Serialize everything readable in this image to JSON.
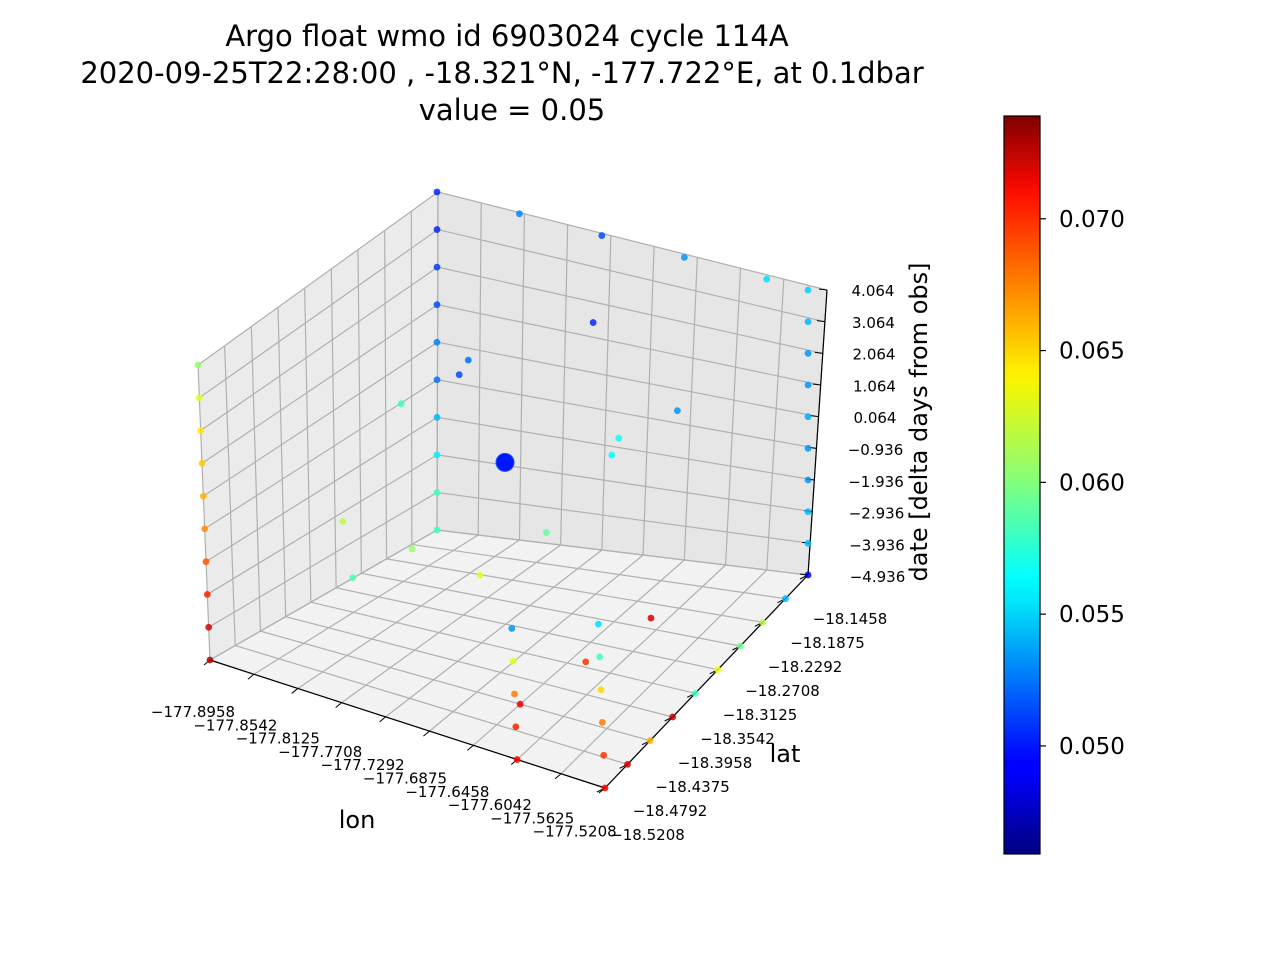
{
  "chart_data": {
    "type": "scatter",
    "projection": "3d",
    "title_lines": [
      "Argo float wmo id 6903024 cycle 114A",
      "2020-09-25T22:28:00 , -18.321°N, -177.722°E, at 0.1dbar",
      "value = 0.05"
    ],
    "xlabel": "lon",
    "ylabel": "lat",
    "zlabel": "date [delta days from obs]",
    "x_ticks": [
      "−177.8958",
      "−177.8542",
      "−177.8125",
      "−177.7708",
      "−177.7292",
      "−177.6875",
      "−177.6458",
      "−177.6042",
      "−177.5625",
      "−177.5208"
    ],
    "y_ticks": [
      "−18.1458",
      "−18.1875",
      "−18.2292",
      "−18.2708",
      "−18.3125",
      "−18.3542",
      "−18.3958",
      "−18.4375",
      "−18.4792",
      "−18.5208"
    ],
    "z_ticks": [
      "4.064",
      "3.064",
      "2.064",
      "1.064",
      "0.064",
      "−0.936",
      "−1.936",
      "−2.936",
      "−3.936",
      "−4.936"
    ],
    "xlim": [
      -177.8958,
      -177.5208
    ],
    "ylim": [
      -18.5208,
      -18.1458
    ],
    "zlim": [
      -4.936,
      4.064
    ],
    "colormap": "jet",
    "colorbar": {
      "range": [
        0.0459,
        0.0739
      ],
      "ticks": [
        "0.050",
        "0.055",
        "0.060",
        "0.065",
        "0.070"
      ]
    },
    "observation": {
      "lon": -177.722,
      "lat": -18.321,
      "days": 0,
      "value": 0.05
    },
    "grid": true,
    "series": [
      {
        "points": [
          [
            -177.8958,
            -18.5208,
            -4.936,
            0.0725
          ],
          [
            -177.8958,
            -18.5208,
            -3.936,
            0.0715
          ],
          [
            -177.8958,
            -18.5208,
            -2.936,
            0.0695
          ],
          [
            -177.8958,
            -18.5208,
            -1.936,
            0.068
          ],
          [
            -177.8958,
            -18.5208,
            -0.936,
            0.0665
          ],
          [
            -177.8958,
            -18.5208,
            0.064,
            0.0655
          ],
          [
            -177.8958,
            -18.5208,
            1.064,
            0.0648
          ],
          [
            -177.8958,
            -18.5208,
            2.064,
            0.064
          ],
          [
            -177.8958,
            -18.5208,
            3.064,
            0.0625
          ],
          [
            -177.8958,
            -18.5208,
            4.064,
            0.0605
          ],
          [
            -177.6042,
            -18.5208,
            -4.936,
            0.0705
          ],
          [
            -177.6042,
            -18.5208,
            -3.936,
            0.0695
          ],
          [
            -177.6042,
            -18.5208,
            -2.936,
            0.067
          ],
          [
            -177.6042,
            -18.5208,
            -1.936,
            0.0625
          ],
          [
            -177.6042,
            -18.5208,
            -0.936,
            0.0535
          ],
          [
            -177.5208,
            -18.5208,
            -4.936,
            0.0705
          ],
          [
            -177.5208,
            -18.5208,
            -3.936,
            0.069
          ],
          [
            -177.5208,
            -18.5208,
            -2.936,
            0.067
          ],
          [
            -177.5208,
            -18.5208,
            -1.936,
            0.0645
          ],
          [
            -177.5208,
            -18.5208,
            -0.936,
            0.058
          ],
          [
            -177.5208,
            -18.5208,
            0.064,
            0.0555
          ],
          [
            -177.5208,
            -18.4792,
            -4.936,
            0.0715
          ],
          [
            -177.5208,
            -18.4375,
            -4.936,
            0.0655
          ],
          [
            -177.5208,
            -18.3958,
            -4.936,
            0.072
          ],
          [
            -177.5208,
            -18.3542,
            -4.936,
            0.058
          ],
          [
            -177.5208,
            -18.3125,
            -4.936,
            0.063
          ],
          [
            -177.5208,
            -18.2708,
            -4.936,
            0.0595
          ],
          [
            -177.5208,
            -18.2292,
            -4.936,
            0.0615
          ],
          [
            -177.5208,
            -18.1875,
            -4.936,
            0.0545
          ],
          [
            -177.5208,
            -18.1458,
            -4.936,
            0.0485
          ],
          [
            -177.5208,
            -18.1458,
            -3.936,
            0.0545
          ],
          [
            -177.5208,
            -18.1458,
            -2.936,
            0.0545
          ],
          [
            -177.5208,
            -18.1458,
            -1.936,
            0.0535
          ],
          [
            -177.5208,
            -18.1458,
            -0.936,
            0.0535
          ],
          [
            -177.5208,
            -18.1458,
            0.064,
            0.054
          ],
          [
            -177.5208,
            -18.1458,
            1.064,
            0.0535
          ],
          [
            -177.5208,
            -18.1458,
            2.064,
            0.0535
          ],
          [
            -177.5208,
            -18.1458,
            3.064,
            0.0545
          ],
          [
            -177.5208,
            -18.1458,
            4.064,
            0.055
          ],
          [
            -177.8958,
            -18.1458,
            4.064,
            0.0505
          ],
          [
            -177.8958,
            -18.1458,
            3.064,
            0.0505
          ],
          [
            -177.8958,
            -18.1458,
            2.064,
            0.051
          ],
          [
            -177.8958,
            -18.1458,
            1.064,
            0.0515
          ],
          [
            -177.8958,
            -18.1458,
            0.064,
            0.053
          ],
          [
            -177.8958,
            -18.1458,
            -0.936,
            0.0525
          ],
          [
            -177.8958,
            -18.1458,
            -1.936,
            0.0545
          ],
          [
            -177.8958,
            -18.1458,
            -2.936,
            0.056
          ],
          [
            -177.8958,
            -18.1458,
            -3.936,
            0.058
          ],
          [
            -177.8958,
            -18.1458,
            -4.936,
            0.058
          ],
          [
            -177.8125,
            -18.1458,
            4.064,
            0.053
          ],
          [
            -177.7292,
            -18.1458,
            4.064,
            0.0515
          ],
          [
            -177.6458,
            -18.1458,
            4.064,
            0.0535
          ],
          [
            -177.5625,
            -18.1458,
            4.064,
            0.0555
          ],
          [
            -177.8125,
            -18.4375,
            -0.936,
            0.0615
          ],
          [
            -177.7708,
            -18.3958,
            -1.936,
            0.0605
          ],
          [
            -177.7292,
            -18.3542,
            -2.936,
            0.0625
          ],
          [
            -177.6875,
            -18.3125,
            -1.936,
            0.059
          ],
          [
            -177.6458,
            -18.2708,
            0.064,
            0.0565
          ],
          [
            -177.6042,
            -18.2292,
            1.064,
            0.0535
          ],
          [
            -177.7708,
            -18.3125,
            2.064,
            0.0515
          ],
          [
            -177.6875,
            -18.2292,
            3.064,
            0.0505
          ],
          [
            -177.8125,
            -18.2292,
            1.064,
            0.0525
          ],
          [
            -177.5625,
            -18.3542,
            -2.936,
            0.0715
          ],
          [
            -177.6042,
            -18.3958,
            -3.936,
            0.069
          ],
          [
            -177.6458,
            -18.4375,
            -4.936,
            0.071
          ],
          [
            -177.8542,
            -18.3542,
            -3.936,
            0.0585
          ],
          [
            -177.8542,
            -18.2708,
            0.064,
            0.058
          ],
          [
            -177.6875,
            -18.1875,
            -0.936,
            0.0565
          ]
        ]
      }
    ]
  }
}
